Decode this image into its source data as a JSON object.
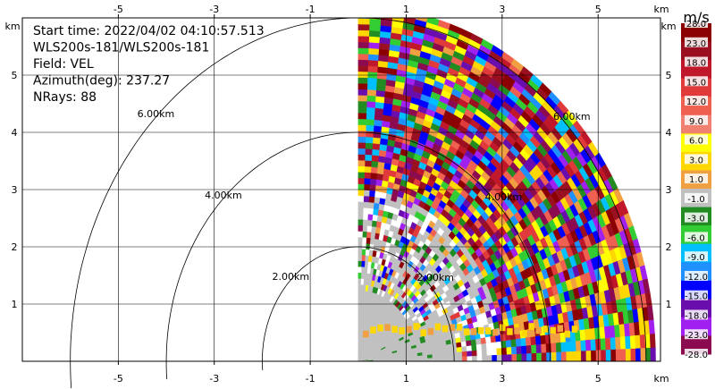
{
  "chart_data": {
    "type": "heatmap",
    "title_lines": [
      "Start time: 2022/04/02 04:10:57.513",
      "WLS200s-181/WLS200s-181",
      "Field: VEL",
      "Azimuth(deg): 237.27",
      "NRays: 88"
    ],
    "x_unit": "km",
    "y_unit": "km",
    "xlim": [
      -7.0,
      6.3
    ],
    "ylim": [
      0.0,
      6.0
    ],
    "x_ticks": [
      -5,
      -3,
      -1,
      1,
      3,
      5
    ],
    "y_ticks": [
      1,
      2,
      3,
      4,
      5
    ],
    "range_rings": [
      {
        "radius_km": 2,
        "label": "2.00km"
      },
      {
        "radius_km": 4,
        "label": "4.00km"
      },
      {
        "radius_km": 6,
        "label": "6.00km"
      }
    ],
    "colorbar": {
      "unit": "m/s",
      "labels": [
        "28.0",
        "23.0",
        "18.0",
        "15.0",
        "12.0",
        "9.0",
        "6.0",
        "3.0",
        "1.0",
        "-1.0",
        "-3.0",
        "-6.0",
        "-9.0",
        "-12.0",
        "-15.0",
        "-18.0",
        "-23.0",
        "-28.0"
      ],
      "colors": [
        "#8b0000",
        "#9b1020",
        "#c0182a",
        "#e03a3a",
        "#f06050",
        "#f08070",
        "#ffff00",
        "#ffd700",
        "#f0a040",
        "#c0c0c0",
        "#228b22",
        "#32cd32",
        "#00bfff",
        "#1e90ff",
        "#0000ff",
        "#6a0dad",
        "#a020f0",
        "#8b0a50"
      ]
    },
    "scan_sector": {
      "x_start_km": 0.0,
      "max_range_km": 6.2
    }
  }
}
